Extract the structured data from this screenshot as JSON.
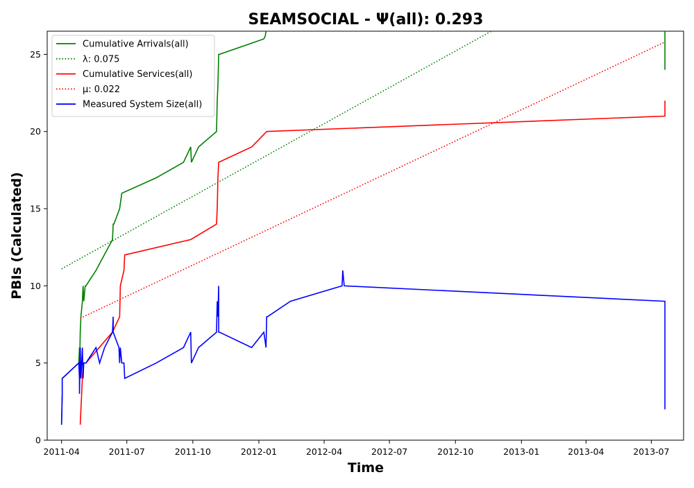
{
  "chart_data": {
    "type": "line",
    "title": "SEAMSOCIAL -  Ψ(all): 0.293",
    "xlabel": "Time",
    "ylabel": "PBIs (Calculated)",
    "x_axis_type": "date",
    "xlim": [
      "2011-03-12",
      "2013-08-15"
    ],
    "ylim": [
      0,
      26.5
    ],
    "x_ticks": [
      "2011-04-01",
      "2011-07-01",
      "2011-10-01",
      "2012-01-01",
      "2012-04-01",
      "2012-07-01",
      "2012-10-01",
      "2013-01-01",
      "2013-04-01",
      "2013-07-01"
    ],
    "x_tick_labels": [
      "2011-04",
      "2011-07",
      "2011-10",
      "2012-01",
      "2012-04",
      "2012-07",
      "2012-10",
      "2013-01",
      "2013-04",
      "2013-07"
    ],
    "y_ticks": [
      0,
      5,
      10,
      15,
      20,
      25
    ],
    "y_tick_labels": [
      "0",
      "5",
      "10",
      "15",
      "20",
      "25"
    ],
    "grid": false,
    "legend_position": "top-left",
    "series": [
      {
        "name": "Cumulative Arrivals(all)",
        "style": "solid",
        "color": "#008000",
        "x": [
          "2011-04-01",
          "2011-04-02",
          "2011-04-02",
          "2011-04-25",
          "2011-04-26",
          "2011-04-26",
          "2011-04-27",
          "2011-04-28",
          "2011-04-30",
          "2011-05-01",
          "2011-05-02",
          "2011-05-04",
          "2011-05-05",
          "2011-05-19",
          "2011-06-11",
          "2011-06-12",
          "2011-06-13",
          "2011-06-21",
          "2011-06-24",
          "2011-06-24",
          "2011-08-11",
          "2011-09-18",
          "2011-09-28",
          "2011-09-29",
          "2011-10-09",
          "2011-11-03",
          "2011-11-04",
          "2011-11-05",
          "2011-11-06",
          "2011-11-07",
          "2012-01-08",
          "2012-01-10",
          "2012-01-11"
        ],
        "y": [
          1,
          3,
          4,
          5,
          6,
          4,
          7,
          8,
          9,
          10,
          9,
          10,
          10,
          11,
          13,
          14,
          14,
          15,
          16,
          16,
          17,
          18,
          19,
          18,
          19,
          20,
          22,
          23,
          25,
          25,
          26,
          26.2,
          26.5
        ]
      },
      {
        "name": "Cumulative Arrivals(all)",
        "style": "solid",
        "color": "#008000",
        "show_in_legend": false,
        "x": [
          "2013-07-20",
          "2013-07-20"
        ],
        "y": [
          26.5,
          24
        ]
      },
      {
        "name": "λ: 0.075",
        "style": "dotted",
        "color": "#008000",
        "x": [
          "2011-04-01",
          "2012-11-20"
        ],
        "y": [
          11.1,
          26.5
        ]
      },
      {
        "name": "Cumulative Services(all)",
        "style": "solid",
        "color": "#ff0000",
        "x": [
          "2011-04-27",
          "2011-04-28",
          "2011-04-30",
          "2011-05-01",
          "2011-05-05",
          "2011-06-11",
          "2011-06-21",
          "2011-06-22",
          "2011-06-27",
          "2011-06-28",
          "2011-09-28",
          "2011-11-03",
          "2011-11-04",
          "2011-11-05",
          "2011-11-06",
          "2011-12-22",
          "2012-01-12",
          "2013-07-20",
          "2013-07-20"
        ],
        "y": [
          1,
          2,
          4,
          5,
          5,
          7,
          8,
          10,
          11,
          12,
          13,
          14,
          15,
          17,
          18,
          19,
          20,
          21,
          22
        ]
      },
      {
        "name": "μ: 0.022",
        "style": "dotted",
        "color": "#ff0000",
        "x": [
          "2011-04-27",
          "2013-07-20"
        ],
        "y": [
          7.9,
          25.8
        ]
      },
      {
        "name": "Measured System Size(all)",
        "style": "solid",
        "color": "#0000ff",
        "x": [
          "2011-04-01",
          "2011-04-02",
          "2011-04-02",
          "2011-04-25",
          "2011-04-26",
          "2011-04-26",
          "2011-04-27",
          "2011-04-28",
          "2011-04-30",
          "2011-05-01",
          "2011-05-02",
          "2011-05-04",
          "2011-05-05",
          "2011-05-19",
          "2011-05-24",
          "2011-05-31",
          "2011-06-11",
          "2011-06-12",
          "2011-06-12",
          "2011-06-20",
          "2011-06-21",
          "2011-06-22",
          "2011-06-24",
          "2011-06-27",
          "2011-06-28",
          "2011-08-11",
          "2011-09-18",
          "2011-09-28",
          "2011-09-29",
          "2011-10-09",
          "2011-11-03",
          "2011-11-04",
          "2011-11-05",
          "2011-11-06",
          "2011-11-06",
          "2011-11-07",
          "2011-12-22",
          "2012-01-08",
          "2012-01-11",
          "2012-01-12",
          "2012-01-13",
          "2012-02-14",
          "2012-04-26",
          "2012-04-27",
          "2012-04-29",
          "2013-07-20",
          "2013-07-20"
        ],
        "y": [
          1,
          3,
          4,
          5,
          4,
          3,
          6,
          4,
          6,
          4,
          5,
          5,
          5,
          6,
          5,
          6,
          7,
          8,
          7,
          6,
          5,
          6,
          5,
          5,
          4,
          5,
          6,
          7,
          5,
          6,
          7,
          9,
          8,
          10,
          7,
          7,
          6,
          7,
          6,
          8,
          8,
          9,
          10,
          11,
          10,
          9,
          2
        ]
      }
    ]
  }
}
